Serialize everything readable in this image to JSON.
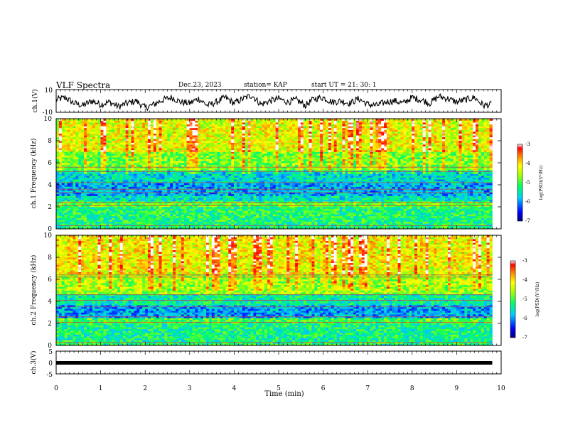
{
  "header": {
    "title": "VLF Spectra",
    "date": "Dec.23, 2023",
    "station": "station= KAP",
    "start": "start UT =  21: 30: 1"
  },
  "chart_data": [
    {
      "type": "line",
      "panel": "ch1-waveform",
      "ylabel": "ch.1(V)",
      "ylim": [
        -10,
        10
      ],
      "ytick_labels": [
        "10",
        "-10"
      ],
      "xlim": [
        0,
        9.8
      ],
      "series": [
        {
          "values_note_free": true,
          "x": [
            0,
            0.2,
            0.4,
            0.6,
            0.8,
            1.0,
            1.2,
            1.4,
            1.6,
            1.8,
            2.0,
            2.2,
            2.4,
            2.6,
            2.8,
            3.0,
            3.2,
            3.4,
            3.6,
            3.8,
            4.0,
            4.2,
            4.4,
            4.6,
            4.8,
            5.0,
            5.2,
            5.4,
            5.6,
            5.8,
            6.0,
            6.2,
            6.4,
            6.6,
            6.8,
            7.0,
            7.2,
            7.4,
            7.6,
            7.8,
            8.0,
            8.2,
            8.4,
            8.6,
            8.8,
            9.0,
            9.2,
            9.4,
            9.6,
            9.8
          ],
          "y": [
            1,
            3,
            -2,
            -4,
            0,
            -3,
            -1,
            -5,
            -2,
            0,
            -6,
            -3,
            1,
            3,
            -1,
            -2,
            2,
            -4,
            -1,
            3,
            -2,
            2,
            5,
            -3,
            0,
            2,
            -1,
            1,
            -4,
            2,
            3,
            -1,
            0,
            -2,
            2,
            -3,
            -4,
            -1,
            0,
            -2,
            3,
            1,
            -2,
            4,
            2,
            -1,
            1,
            3,
            -4,
            -3
          ]
        }
      ]
    },
    {
      "type": "heatmap",
      "panel": "ch1-spectrogram",
      "ylabel": "ch.1 Frequency (kHz)",
      "ylim": [
        0,
        10
      ],
      "yticks": [
        0,
        2,
        4,
        6,
        8,
        10
      ],
      "xlim": [
        0,
        9.8
      ],
      "colorbar": {
        "label": "log(PSD)(V²/Hz)",
        "range": [
          -7,
          -3
        ],
        "ticks": [
          -3,
          -4,
          -5,
          -6,
          -7
        ]
      },
      "band_levels": [
        {
          "f_range": [
            0,
            0.3
          ],
          "level": -5.2
        },
        {
          "f_range": [
            0.3,
            2.0
          ],
          "level": -5.2
        },
        {
          "f_range": [
            2.0,
            2.5
          ],
          "level": -4.9
        },
        {
          "f_range": [
            2.5,
            3.0
          ],
          "level": -5.5
        },
        {
          "f_range": [
            3.0,
            4.2
          ],
          "level": -5.9
        },
        {
          "f_range": [
            4.2,
            5.4
          ],
          "level": -5.6
        },
        {
          "f_range": [
            5.4,
            7.0
          ],
          "level": -4.8
        },
        {
          "f_range": [
            7.0,
            10.0
          ],
          "level": -4.3
        }
      ],
      "lines_khz": [
        0.3,
        2.1,
        2.4,
        3.3,
        3.6,
        4.2,
        5.2,
        5.6
      ]
    },
    {
      "type": "heatmap",
      "panel": "ch2-spectrogram",
      "ylabel": "ch.2 Frequency (kHz)",
      "ylim": [
        0,
        10
      ],
      "yticks": [
        0,
        2,
        4,
        6,
        8,
        10
      ],
      "xlim": [
        0,
        9.8
      ],
      "colorbar": {
        "label": "log(PSD)(V²/Hz)",
        "range": [
          -7,
          -3
        ],
        "ticks": [
          -3,
          -4,
          -5,
          -6,
          -7
        ]
      },
      "band_levels": [
        {
          "f_range": [
            0,
            0.3
          ],
          "level": -5.2
        },
        {
          "f_range": [
            0.3,
            2.0
          ],
          "level": -5.3
        },
        {
          "f_range": [
            2.0,
            2.5
          ],
          "level": -5.0
        },
        {
          "f_range": [
            2.5,
            3.6
          ],
          "level": -5.9
        },
        {
          "f_range": [
            3.6,
            4.6
          ],
          "level": -5.4
        },
        {
          "f_range": [
            4.6,
            6.5
          ],
          "level": -4.6
        },
        {
          "f_range": [
            6.5,
            10.0
          ],
          "level": -4.2
        }
      ],
      "lines_khz": [
        0.3,
        2.1,
        2.6,
        3.5,
        4.1,
        4.6,
        6.2,
        6.4
      ]
    },
    {
      "type": "line",
      "panel": "ch3-waveform",
      "ylabel": "ch.3(V)",
      "ylim": [
        -5,
        5
      ],
      "yticks": [
        5,
        0,
        -5
      ],
      "xlim": [
        0,
        9.8
      ],
      "series": [
        {
          "x": [
            0,
            9.8
          ],
          "y": [
            0,
            0
          ]
        }
      ]
    }
  ],
  "axis": {
    "xlabel": "Time (min)",
    "xticks": [
      "0",
      "1",
      "2",
      "3",
      "4",
      "5",
      "6",
      "7",
      "8",
      "9",
      "10"
    ]
  },
  "colorbar_labels": {
    "top": "-3",
    "m4": "-4",
    "m5": "-5",
    "m6": "-6",
    "bottom": "-7",
    "title": "log(PSD)(V²/Hz)"
  }
}
